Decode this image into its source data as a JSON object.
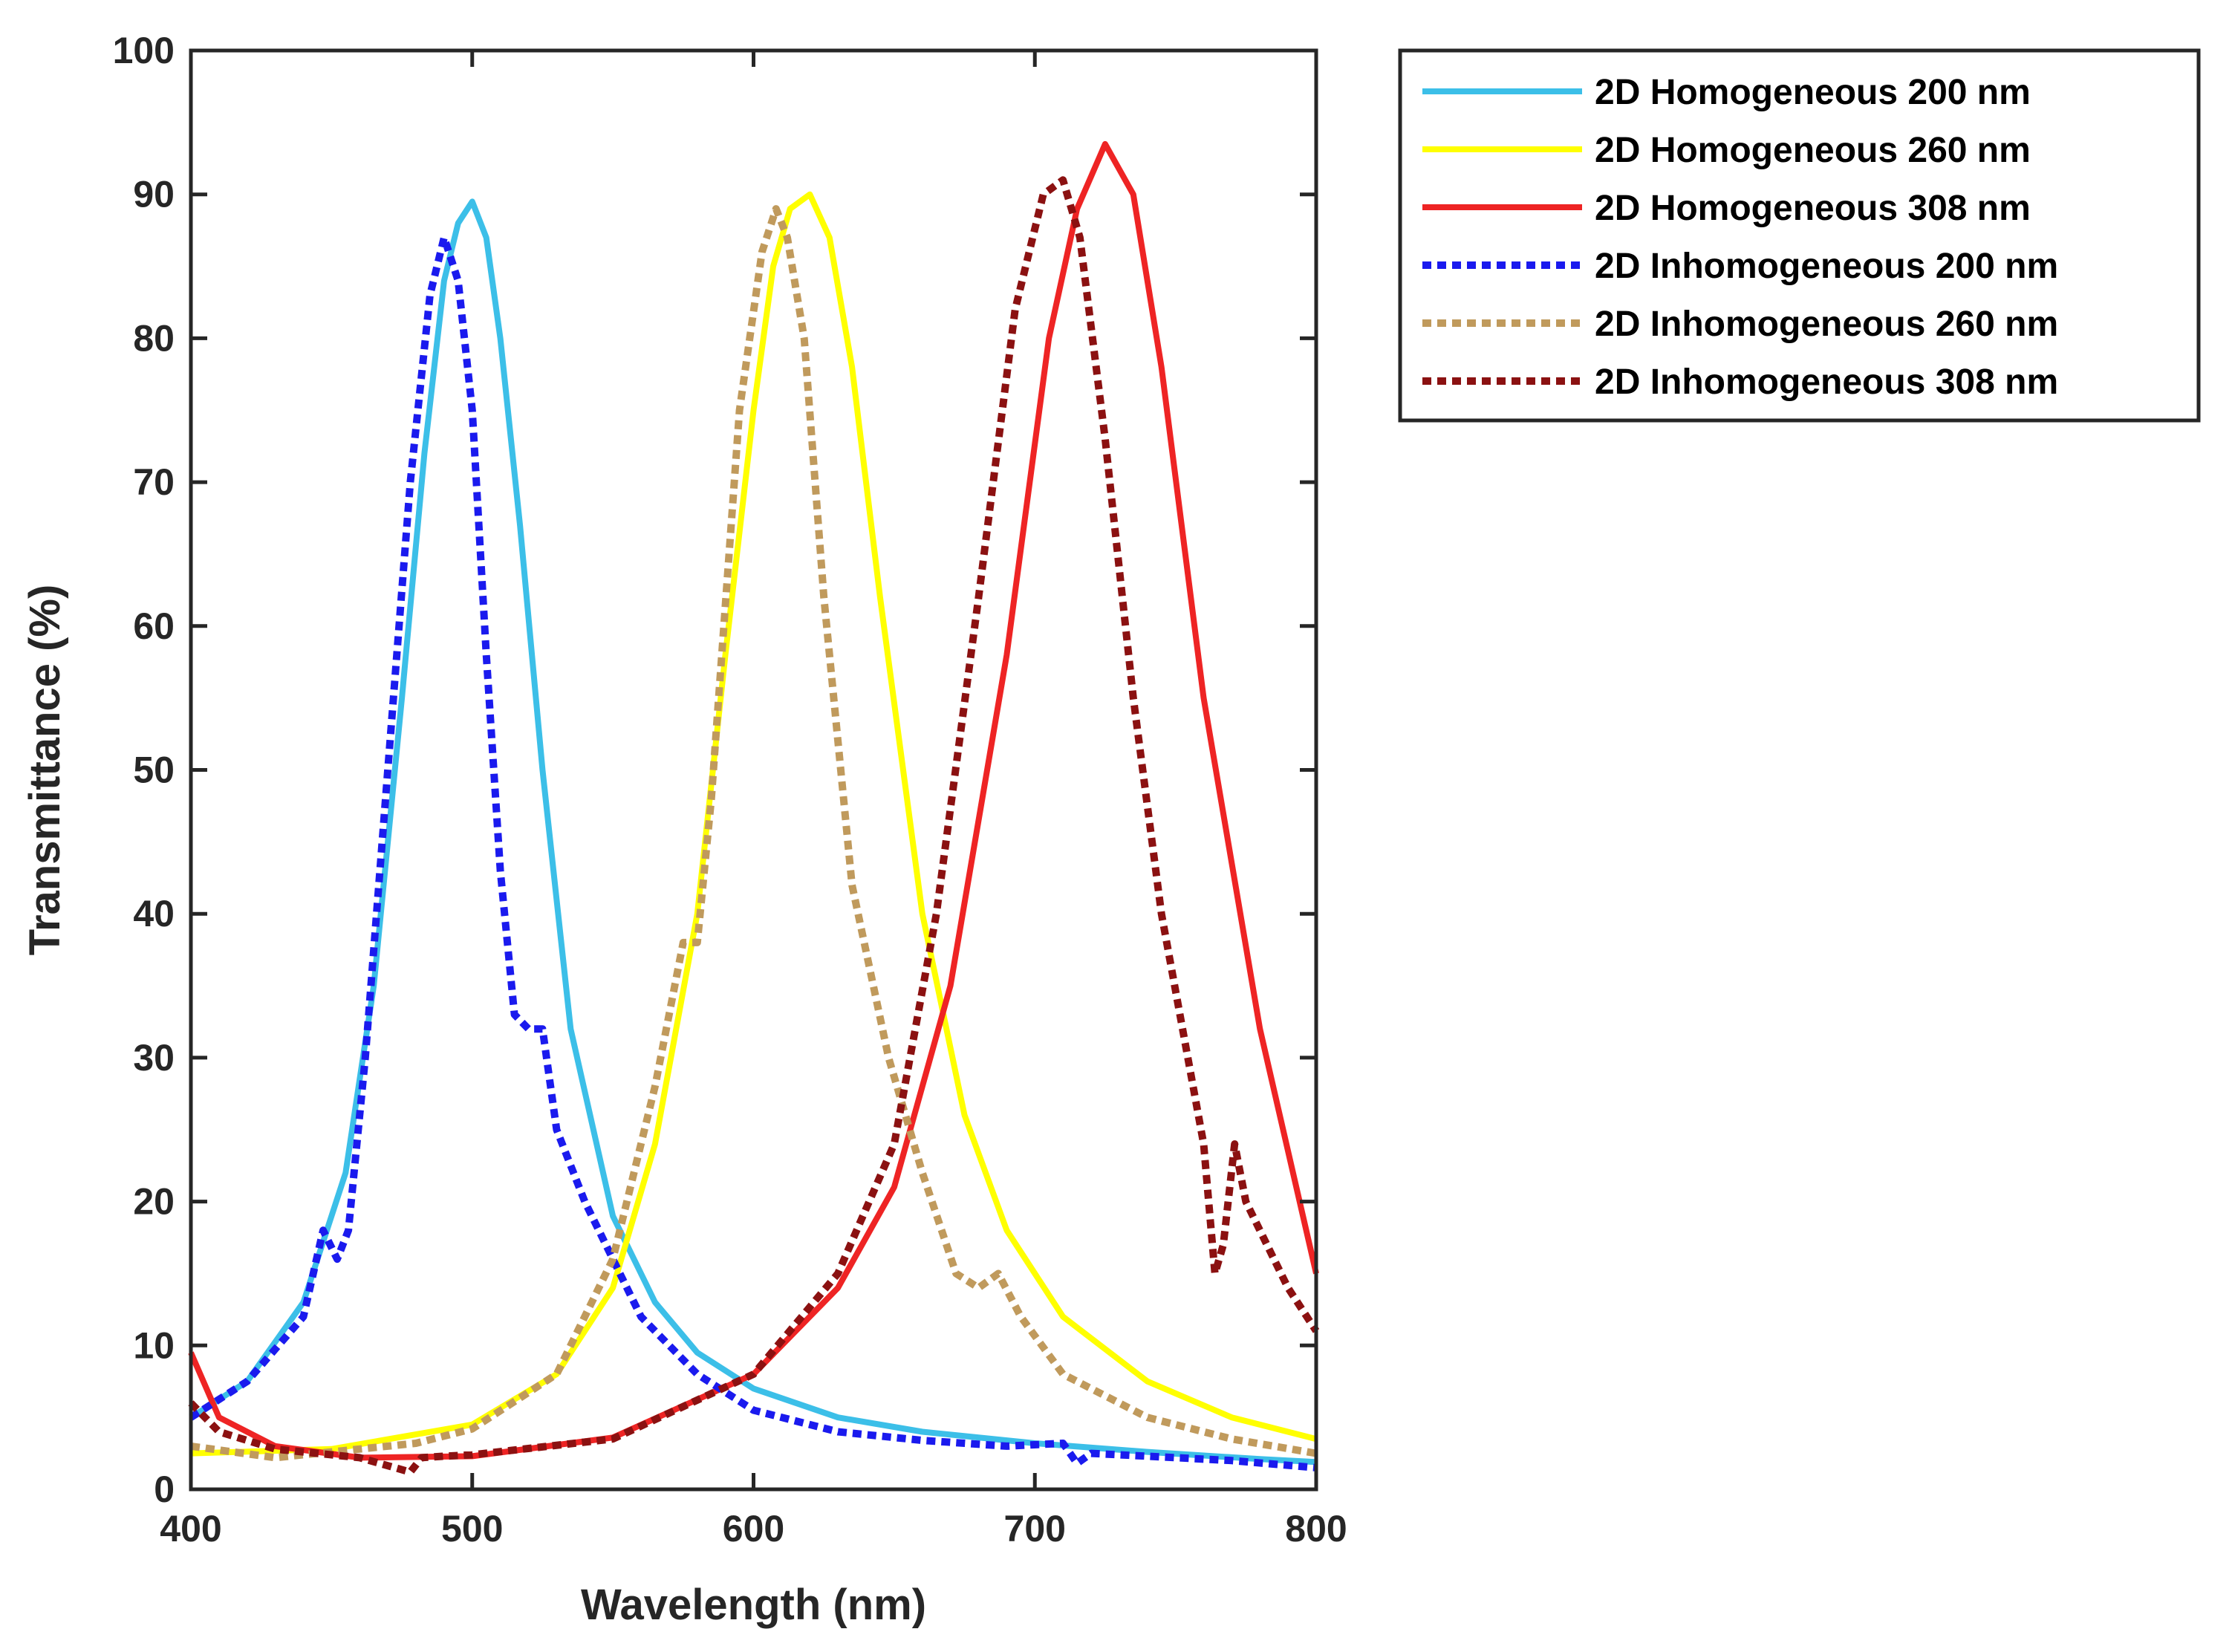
{
  "chart_data": {
    "type": "line",
    "title": "",
    "xlabel": "Wavelength (nm)",
    "ylabel": "Transmittance (%)",
    "xlim": [
      400,
      800
    ],
    "ylim": [
      0,
      100
    ],
    "xticks": [
      400,
      500,
      600,
      700,
      800
    ],
    "yticks": [
      0,
      10,
      20,
      30,
      40,
      50,
      60,
      70,
      80,
      90,
      100
    ],
    "grid": false,
    "legend_position": "outside top-right",
    "series": [
      {
        "name": "2D Homogeneous 200 nm",
        "color": "#3cbfe8",
        "style": "solid",
        "x": [
          400,
          420,
          440,
          455,
          465,
          475,
          483,
          490,
          495,
          500,
          505,
          510,
          517,
          525,
          535,
          550,
          565,
          580,
          600,
          630,
          660,
          700,
          740,
          780,
          800
        ],
        "y": [
          5,
          7.5,
          13,
          22,
          35,
          55,
          72,
          84,
          88,
          89.5,
          87,
          80,
          67,
          50,
          32,
          19,
          13,
          9.5,
          7,
          5,
          4,
          3.2,
          2.6,
          2.1,
          1.9
        ]
      },
      {
        "name": "2D Homogeneous 260 nm",
        "color": "#ffff00",
        "style": "solid",
        "x": [
          400,
          450,
          500,
          530,
          550,
          565,
          580,
          590,
          600,
          607,
          613,
          620,
          627,
          635,
          645,
          660,
          675,
          690,
          710,
          740,
          770,
          800
        ],
        "y": [
          2.5,
          2.8,
          4.5,
          8,
          14,
          24,
          40,
          58,
          75,
          85,
          89,
          90,
          87,
          78,
          62,
          40,
          26,
          18,
          12,
          7.5,
          5,
          3.5
        ]
      },
      {
        "name": "2D Homogeneous 308 nm",
        "color": "#ee2424",
        "style": "solid",
        "x": [
          400,
          410,
          430,
          460,
          500,
          550,
          600,
          630,
          650,
          670,
          690,
          705,
          715,
          725,
          735,
          745,
          760,
          780,
          800
        ],
        "y": [
          9.5,
          5,
          3,
          2.2,
          2.3,
          3.6,
          8,
          14,
          21,
          35,
          58,
          80,
          89,
          93.5,
          90,
          78,
          55,
          32,
          15
        ]
      },
      {
        "name": "2D Inhomogeneous 200 nm",
        "color": "#1a1aee",
        "style": "dotted",
        "x": [
          400,
          420,
          440,
          447,
          452,
          456,
          462,
          470,
          478,
          485,
          490,
          495,
          500,
          505,
          510,
          515,
          520,
          525,
          530,
          540,
          560,
          580,
          600,
          630,
          660,
          690,
          710,
          715,
          720,
          740,
          770,
          800
        ],
        "y": [
          5,
          7.5,
          12,
          18,
          16,
          18,
          30,
          50,
          70,
          83,
          87,
          84,
          75,
          58,
          43,
          33,
          32,
          32,
          25,
          20,
          12,
          8,
          5.5,
          4,
          3.4,
          3,
          3.2,
          1.8,
          2.5,
          2.3,
          2,
          1.5
        ]
      },
      {
        "name": "2D Inhomogeneous 260 nm",
        "color": "#c09a5c",
        "style": "dotted",
        "x": [
          400,
          430,
          450,
          480,
          500,
          530,
          550,
          565,
          575,
          580,
          585,
          595,
          603,
          608,
          612,
          618,
          625,
          635,
          648,
          660,
          672,
          680,
          687,
          695,
          710,
          740,
          770,
          800
        ],
        "y": [
          3,
          2.2,
          2.6,
          3.2,
          4.2,
          8,
          16,
          28,
          38,
          38,
          48,
          75,
          86,
          89,
          87,
          80,
          62,
          42,
          30,
          22,
          15,
          14,
          15,
          12,
          8,
          5,
          3.5,
          2.5
        ]
      },
      {
        "name": "2D Inhomogeneous 308 nm",
        "color": "#8b1111",
        "style": "dotted",
        "x": [
          400,
          410,
          430,
          460,
          478,
          482,
          490,
          500,
          550,
          600,
          630,
          650,
          665,
          680,
          693,
          703,
          710,
          716,
          725,
          735,
          745,
          760,
          764,
          767,
          771,
          775,
          790,
          800
        ],
        "y": [
          6,
          4,
          2.8,
          2.2,
          1.2,
          2.2,
          2.3,
          2.4,
          3.5,
          8,
          15,
          24,
          40,
          62,
          82,
          90,
          91,
          87,
          73,
          55,
          40,
          24,
          15,
          17,
          24,
          20,
          14,
          11
        ]
      }
    ]
  }
}
